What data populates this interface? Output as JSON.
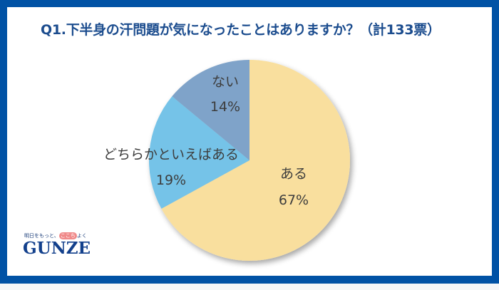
{
  "title": "Q1.下半身の汗問題が気になったことはありますか？（計133票）",
  "logo": {
    "tagline_prefix": "明日をもっと、",
    "tagline_highlight": "ここち",
    "tagline_suffix": "よく",
    "wordmark": "GUNZE"
  },
  "colors": {
    "frame": "#0052A5",
    "title": "#1B4C8E",
    "aru": "#F9DF9E",
    "dochiraka": "#74C3E8",
    "nai": "#7FA3C9"
  },
  "labels": {
    "aru": {
      "name": "ある",
      "pct": "67%"
    },
    "dochiraka": {
      "name": "どちらかといえばある",
      "pct": "19%"
    },
    "nai": {
      "name": "ない",
      "pct": "14%"
    }
  },
  "chart_data": {
    "type": "pie",
    "title": "Q1.下半身の汗問題が気になったことはありますか？（計133票）",
    "categories": [
      "ある",
      "どちらかといえばある",
      "ない"
    ],
    "values": [
      67,
      19,
      14
    ],
    "unit": "%",
    "total_votes": 133,
    "start_angle": "12 o'clock, clockwise",
    "colors": [
      "#F9DF9E",
      "#74C3E8",
      "#7FA3C9"
    ],
    "legend": "none (labels inside slices)"
  }
}
